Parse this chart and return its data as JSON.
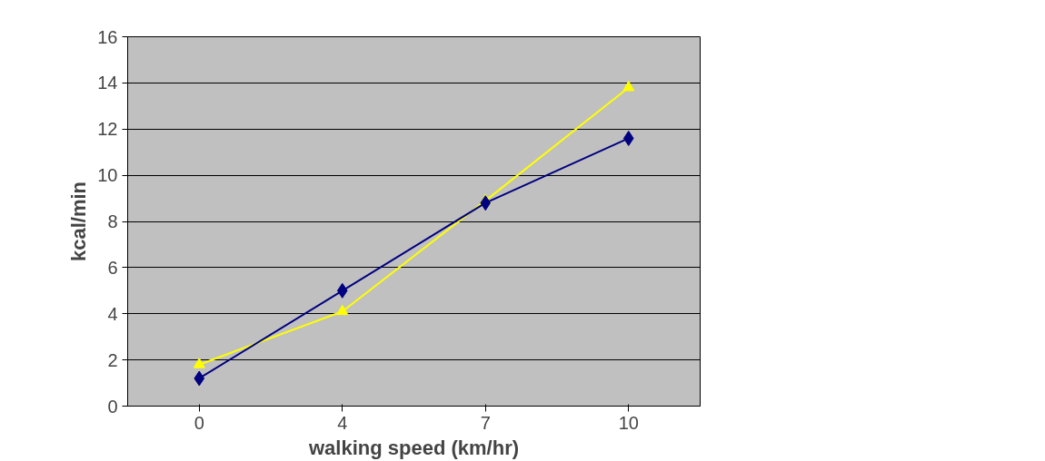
{
  "chart_data": {
    "type": "line",
    "xlabel": "walking speed (km/hr)",
    "ylabel": "kcal/min",
    "categories": [
      "0",
      "4",
      "7",
      "10"
    ],
    "series": [
      {
        "color": "#000080",
        "marker": "diamond",
        "values": [
          1.2,
          5.0,
          8.8,
          11.6
        ]
      },
      {
        "color": "#ffff00",
        "marker": "triangle",
        "values": [
          1.8,
          4.1,
          8.9,
          13.8
        ]
      }
    ],
    "ylim": [
      0,
      16
    ],
    "yticks": [
      0,
      2,
      4,
      6,
      8,
      10,
      12,
      14,
      16
    ],
    "grid": "y",
    "line_style": "solid"
  }
}
